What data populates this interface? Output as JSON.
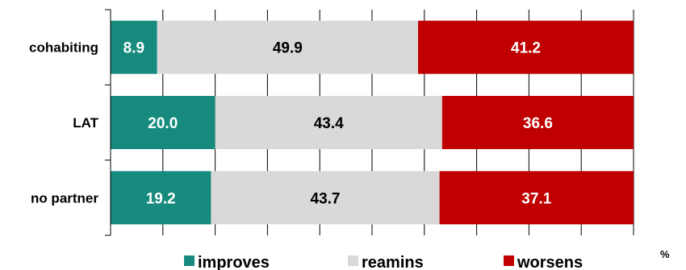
{
  "chart_data": {
    "type": "bar",
    "orientation": "horizontal",
    "stacked": true,
    "categories": [
      "cohabiting",
      "LAT",
      "no partner"
    ],
    "series": [
      {
        "name": "improves",
        "values": [
          8.9,
          20.0,
          19.2
        ],
        "color": "#168a7c",
        "label_color": "#ffffff"
      },
      {
        "name": "reamins",
        "values": [
          49.9,
          43.4,
          43.7
        ],
        "color": "#d9d9d9",
        "label_color": "#000000"
      },
      {
        "name": "worsens",
        "values": [
          41.2,
          36.6,
          37.1
        ],
        "color": "#c00000",
        "label_color": "#ffffff"
      }
    ],
    "value_labels": [
      [
        "8.9",
        "49.9",
        "41.2"
      ],
      [
        "20.0",
        "43.4",
        "36.6"
      ],
      [
        "19.2",
        "43.7",
        "37.1"
      ]
    ],
    "xlim": [
      0,
      100
    ],
    "x_grid_step": 10,
    "grid": true,
    "unit": "%",
    "legend_position": "bottom"
  }
}
